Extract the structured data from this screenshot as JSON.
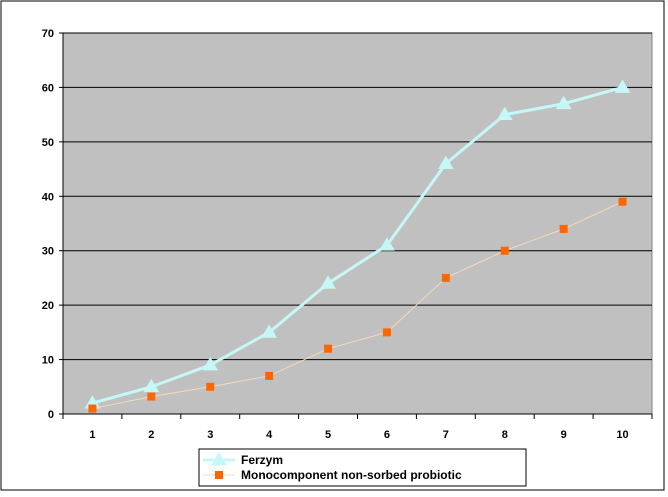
{
  "chart_data": {
    "type": "line",
    "title": "",
    "xlabel": "",
    "ylabel": "",
    "categories": [
      "1",
      "2",
      "3",
      "4",
      "5",
      "6",
      "7",
      "8",
      "9",
      "10"
    ],
    "ylim": [
      0,
      70
    ],
    "yticks": [
      0,
      10,
      20,
      30,
      40,
      50,
      60,
      70
    ],
    "grid": true,
    "plot_background": "#c0c0c0",
    "legend_position": "bottom",
    "series": [
      {
        "name": "Ferzym",
        "color": "#c6f7f7",
        "marker": "triangle",
        "values": [
          2,
          5,
          9,
          15,
          24,
          31,
          46,
          55,
          57,
          60
        ]
      },
      {
        "name": "Monocomponent non-sorbed probiotic",
        "color": "#ff6600",
        "line_color": "#f8d9b5",
        "marker": "square",
        "values": [
          1,
          3.2,
          5,
          7,
          12,
          15,
          25,
          30,
          34,
          39
        ]
      }
    ]
  }
}
